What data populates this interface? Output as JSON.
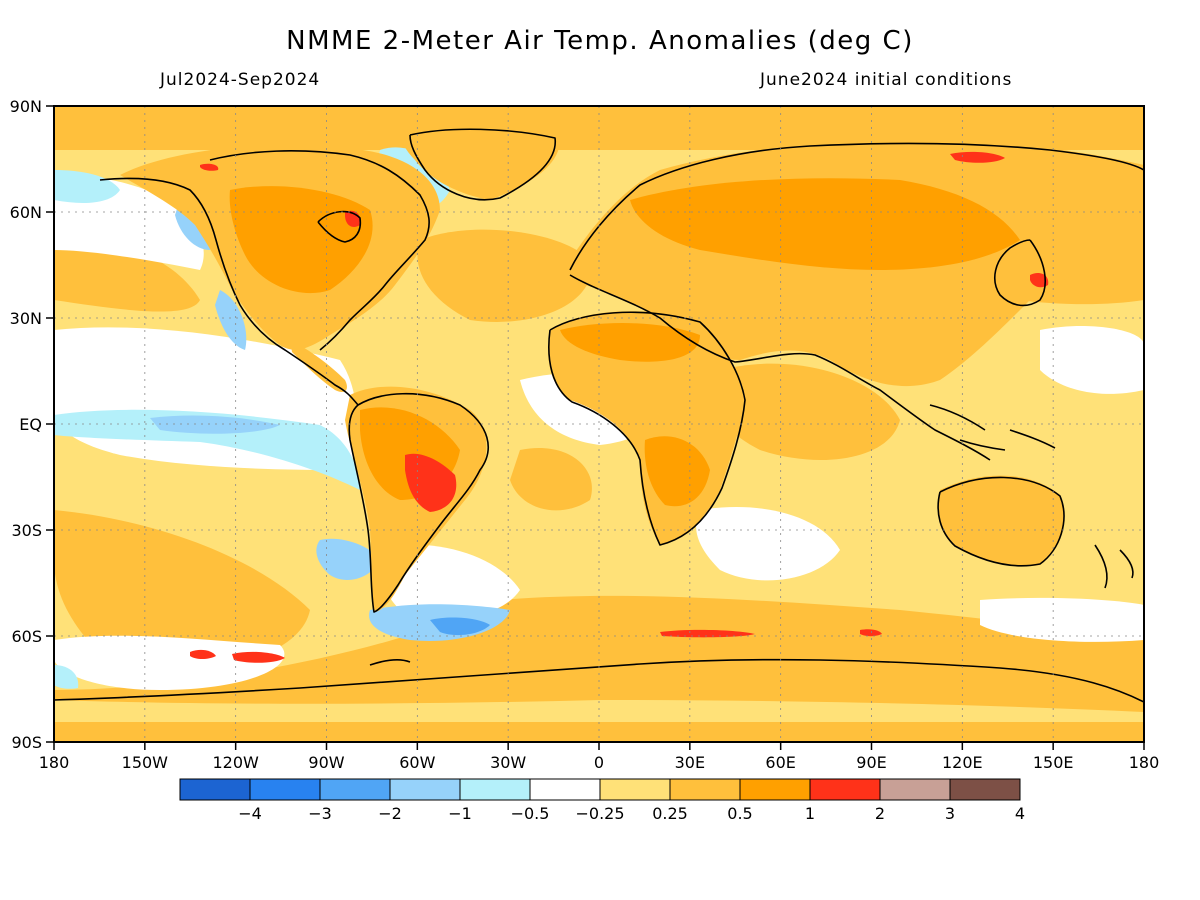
{
  "title": "NMME 2-Meter Air Temp. Anomalies (deg C)",
  "period": "Jul2024-Sep2024",
  "init": "June2024 initial conditions",
  "lat_labels": [
    "90N",
    "60N",
    "30N",
    "EQ",
    "30S",
    "60S",
    "90S"
  ],
  "lon_labels": [
    "180",
    "150W",
    "120W",
    "90W",
    "60W",
    "30W",
    "0",
    "30E",
    "60E",
    "90E",
    "120E",
    "150E",
    "180"
  ],
  "colorbar": {
    "colors": [
      "#1c64d2",
      "#2882f0",
      "#50a5f5",
      "#96d2fa",
      "#b4f0fa",
      "#ffffff",
      "#ffe178",
      "#ffc03c",
      "#ffa000",
      "#ff3219",
      "#c8a096",
      "#7d5046"
    ],
    "labels": [
      "-4",
      "-3",
      "-2",
      "-1",
      "-0.5",
      "-0.25",
      "0.25",
      "0.5",
      "1",
      "2",
      "3",
      "4"
    ]
  },
  "colors": {
    "ocean_base": "#ffe178",
    "land_base": "#ffc03c",
    "strong_warm": "#ffa000",
    "hot": "#ff3219",
    "neutral": "#ffffff",
    "cool": "#b4f0fa",
    "cooler": "#96d2fa",
    "coolest": "#50a5f5",
    "coast": "#000000"
  }
}
